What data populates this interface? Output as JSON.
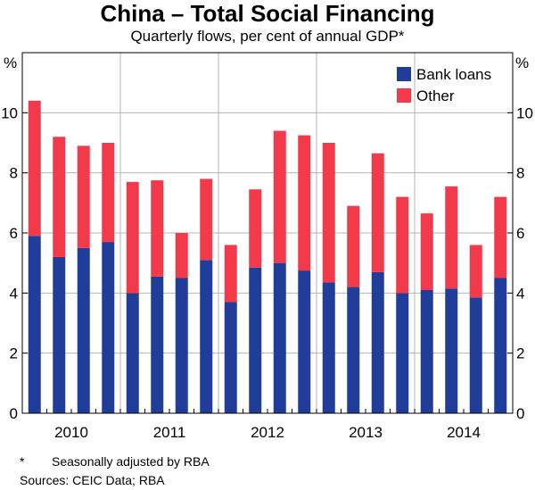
{
  "chart_data": {
    "type": "bar",
    "stacked": true,
    "title": "China – Total Social Financing",
    "subtitle": "Quarterly flows, per cent of annual GDP*",
    "ylabel_left": "%",
    "ylabel_right": "%",
    "ylim": [
      0,
      12
    ],
    "yticks": [
      0,
      2,
      4,
      6,
      8,
      10
    ],
    "year_labels": [
      "2010",
      "2011",
      "2012",
      "2013",
      "2014"
    ],
    "categories": [
      "2010 Q1",
      "2010 Q2",
      "2010 Q3",
      "2010 Q4",
      "2011 Q1",
      "2011 Q2",
      "2011 Q3",
      "2011 Q4",
      "2012 Q1",
      "2012 Q2",
      "2012 Q3",
      "2012 Q4",
      "2013 Q1",
      "2013 Q2",
      "2013 Q3",
      "2013 Q4",
      "2014 Q1",
      "2014 Q2",
      "2014 Q3",
      "2014 Q4"
    ],
    "series": [
      {
        "name": "Bank loans",
        "color": "#1f3d99",
        "values": [
          5.9,
          5.2,
          5.5,
          5.7,
          4.0,
          4.55,
          4.5,
          5.1,
          3.7,
          4.85,
          5.0,
          4.75,
          4.35,
          4.2,
          4.7,
          4.0,
          4.1,
          4.15,
          3.85,
          4.5
        ]
      },
      {
        "name": "Other",
        "color": "#f23a4a",
        "values": [
          4.5,
          4.0,
          3.4,
          3.3,
          3.7,
          3.2,
          1.5,
          2.7,
          1.9,
          2.6,
          4.4,
          4.5,
          4.65,
          2.7,
          3.95,
          3.2,
          2.55,
          3.4,
          1.75,
          2.7
        ]
      }
    ],
    "legend_position": "top-right",
    "grid": true
  },
  "notes": {
    "note1_mark": "*",
    "note1_text": "Seasonally adjusted by RBA",
    "sources": "Sources:   CEIC Data; RBA"
  }
}
